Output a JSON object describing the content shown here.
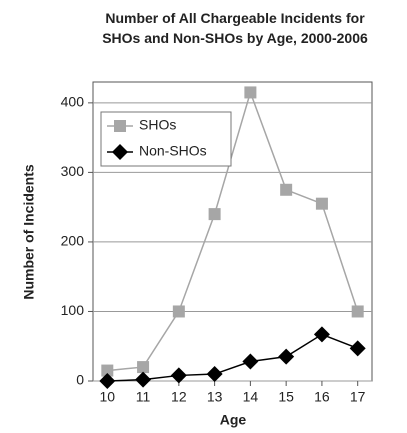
{
  "chart_data": {
    "type": "line",
    "title": "Number of All Chargeable Incidents for SHOs and Non-SHOs by Age, 2000-2006",
    "x_label": "Age",
    "y_label": "Number of Incidents",
    "x": [
      10,
      11,
      12,
      13,
      14,
      15,
      16,
      17
    ],
    "xlim": [
      9.6,
      17.4
    ],
    "xticks": [
      10,
      11,
      12,
      13,
      14,
      15,
      16,
      17
    ],
    "ylim": [
      0,
      430
    ],
    "yticks": [
      0,
      100,
      200,
      300,
      400
    ],
    "grid": true,
    "legend": "upper left",
    "series": [
      {
        "name": "SHOs",
        "color": "#a6a6a6",
        "marker": "square",
        "values": [
          15,
          20,
          100,
          240,
          415,
          275,
          255,
          100
        ]
      },
      {
        "name": "Non-SHOs",
        "color": "#000000",
        "marker": "diamond",
        "values": [
          0,
          2,
          8,
          10,
          28,
          35,
          67,
          47
        ]
      }
    ]
  }
}
